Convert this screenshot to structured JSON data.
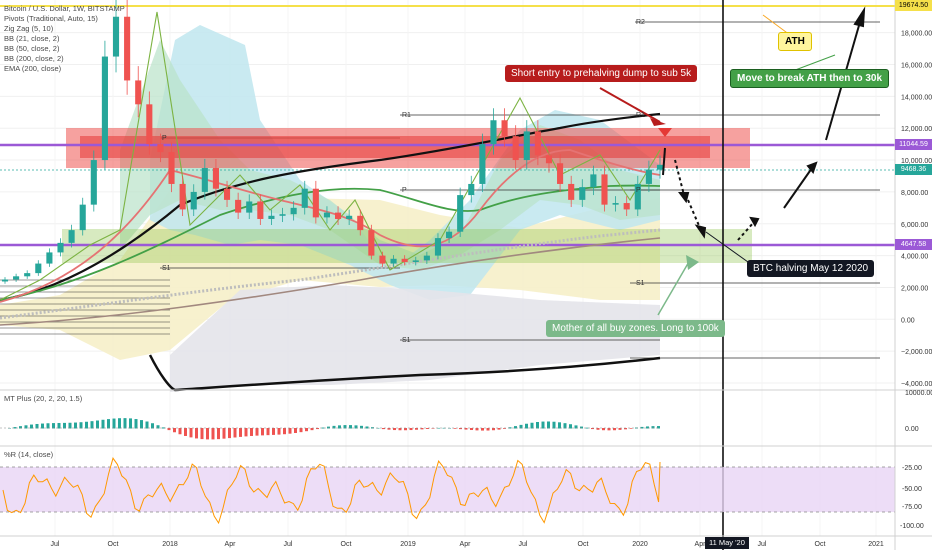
{
  "legend": {
    "symbol": "Bitcoin / U.S. Dollar, 1W, BITSTAMP",
    "pivots": "Pivots (Traditional, Auto, 15)",
    "zigzag": "Zig Zag (5, 10)",
    "bb21": "BB (21, close, 2)",
    "bb50": "BB (50, close, 2)",
    "bb200": "BB (200, close, 2)",
    "ema": "EMA (200, close)",
    "macd": "MT Plus (20, 2, 20, 1.5)",
    "wr": "%R (14, close)"
  },
  "price_boxes": {
    "ath": "19674.50",
    "resistance": "11044.59",
    "last": "9468.36",
    "support": "4647.58"
  },
  "annotations": {
    "ath": "ATH",
    "short_entry": "Short entry to prehalving dump to sub 5k",
    "break_ath": "Move to break ATH then to 30k",
    "halving": "BTC halving May 12 2020",
    "buy_zone": "Mother of all buy zones. Long to 100k",
    "date_marker": "11 May '20"
  },
  "pivot_labels": [
    "R2",
    "R1",
    "R1",
    "P",
    "P",
    "S1",
    "S1",
    "S1",
    "P"
  ],
  "colors": {
    "ath_line": "#f5e04a",
    "level_line": "#9b59d6",
    "red_zone": "#e53935",
    "green_zone": "#66bb6a",
    "short_note_bg": "#b71c1c",
    "break_note_bg": "#43a047",
    "halving_note_bg": "#131722",
    "buy_note_bg": "#7cb98a",
    "ath_note_bg": "#fff59d",
    "ema": "#000000",
    "up": "#26a69a",
    "down": "#ef5350",
    "wr_line": "#ff9800",
    "wr_band": "#e8d5f5"
  },
  "chart_data": {
    "type": "candlestick",
    "title": "Bitcoin / U.S. Dollar, 1W, BITSTAMP",
    "x_ticks": [
      "Jul",
      "Oct",
      "2018",
      "Apr",
      "Jul",
      "Oct",
      "2019",
      "Apr",
      "Jul",
      "Oct",
      "2020",
      "Apr",
      "11 May '20",
      "Jul",
      "Oct",
      "2021"
    ],
    "y_ticks": [
      18000,
      16000,
      14000,
      12000,
      10000,
      8000,
      6000,
      4000,
      2000,
      0,
      -2000,
      -4000
    ],
    "ylim": [
      -4200,
      20000
    ],
    "levels": {
      "ath": 19674.5,
      "resistance": 11044.59,
      "last": 9468.36,
      "support": 4647.58
    },
    "price_path": [
      2500,
      2700,
      2900,
      3500,
      4200,
      4800,
      5600,
      7200,
      10000,
      16500,
      19000,
      15000,
      13500,
      11000,
      10500,
      8500,
      6900,
      8000,
      9500,
      8200,
      7500,
      6700,
      7400,
      6300,
      6500,
      6600,
      7000,
      8200,
      6400,
      6700,
      6300,
      6500,
      5600,
      4000,
      3500,
      3800,
      3600,
      3700,
      4000,
      5100,
      5500,
      7800,
      8500,
      11000,
      12500,
      11500,
      10000,
      11800,
      10300,
      9800,
      8500,
      7500,
      8300,
      9100,
      7200,
      7300,
      6900,
      8500,
      9400,
      9700
    ],
    "macd": {
      "axis": [
        10000,
        0
      ],
      "series": "MT Plus histogram"
    },
    "wr": {
      "yticks": [
        -25,
        -50,
        -75,
        -100
      ],
      "band": [
        -20,
        -80
      ],
      "last": -22
    }
  }
}
